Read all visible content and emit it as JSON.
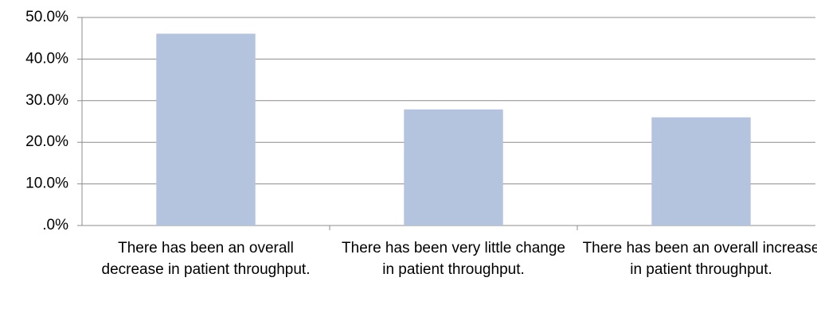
{
  "chart_data": {
    "type": "bar",
    "categories": [
      "There has been an overall decrease in patient throughput.",
      "There has been very little change in patient throughput.",
      "There has been an overall increase in patient throughput."
    ],
    "values": [
      46.1,
      27.9,
      26.0
    ],
    "color": "#b4c3de",
    "ylim": [
      0,
      50
    ],
    "yticks": [
      {
        "value": 0,
        "label": ".0%"
      },
      {
        "value": 10,
        "label": "10.0%"
      },
      {
        "value": 20,
        "label": "20.0%"
      },
      {
        "value": 30,
        "label": "30.0%"
      },
      {
        "value": 40,
        "label": "40.0%"
      },
      {
        "value": 50,
        "label": "50.0%"
      }
    ],
    "grid": true
  }
}
